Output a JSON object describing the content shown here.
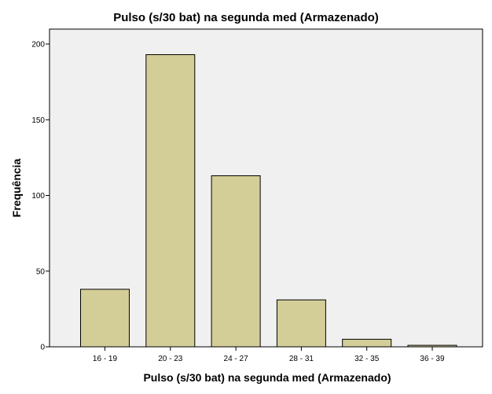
{
  "chart_data": {
    "type": "bar",
    "title": "Pulso (s/30 bat) na segunda med (Armazenado)",
    "xlabel": "Pulso (s/30 bat) na segunda med (Armazenado)",
    "ylabel": "Frequência",
    "categories": [
      "16 - 19",
      "20 - 23",
      "24 - 27",
      "28 - 31",
      "32 - 35",
      "36 - 39"
    ],
    "values": [
      38,
      193,
      113,
      31,
      5,
      1
    ],
    "ylim": [
      0,
      200
    ],
    "yticks": [
      0,
      50,
      100,
      150,
      200
    ],
    "grid": false,
    "colors": {
      "bar_fill": "#d3ce97",
      "bar_stroke": "#000000",
      "plot_background": "#f0f0f0",
      "axis": "#000000"
    }
  }
}
